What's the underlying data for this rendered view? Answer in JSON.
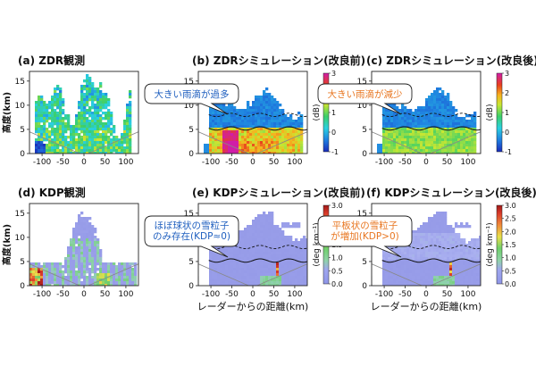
{
  "chart_data": [
    {
      "type": "heatmap",
      "title": "(a) ZDR観測",
      "ylabel": "高度(km)",
      "xlabel": "",
      "xlim": [
        -130,
        130
      ],
      "ylim": [
        0,
        17
      ],
      "xticks": [
        -100,
        -50,
        0,
        50,
        100
      ],
      "yticks": [
        0,
        5,
        10,
        15
      ],
      "colorbar": null,
      "callout": null,
      "field": "zdr_obs"
    },
    {
      "type": "heatmap",
      "title": "(b) ZDRシミュレーション(改良前)",
      "ylabel": "",
      "xlabel": "",
      "xlim": [
        -130,
        130
      ],
      "ylim": [
        0,
        17
      ],
      "xticks": [
        -100,
        -50,
        0,
        50,
        100
      ],
      "yticks": [
        0,
        5,
        10,
        15
      ],
      "colorbar": {
        "label": "(dB)",
        "ticks": [
          "-1",
          "0",
          "1",
          "2",
          "3"
        ],
        "cmap": "jet",
        "min": -1,
        "max": 3
      },
      "callout": {
        "text": "大きい雨滴が過多",
        "color": "#1f5fbf"
      },
      "melting_layer_km": 5.2,
      "field": "zdr_before"
    },
    {
      "type": "heatmap",
      "title": "(c) ZDRシミュレーション(改良後)",
      "ylabel": "",
      "xlabel": "",
      "xlim": [
        -130,
        130
      ],
      "ylim": [
        0,
        17
      ],
      "xticks": [
        -100,
        -50,
        0,
        50,
        100
      ],
      "yticks": [
        0,
        5,
        10,
        15
      ],
      "colorbar": {
        "label": "(dB)",
        "ticks": [
          "-1",
          "0",
          "1",
          "2",
          "3"
        ],
        "cmap": "jet",
        "min": -1,
        "max": 3
      },
      "callout": {
        "text": "大きい雨滴が減少",
        "color": "#e87722"
      },
      "melting_layer_km": 5.2,
      "field": "zdr_after"
    },
    {
      "type": "heatmap",
      "title": "(d) KDP観測",
      "ylabel": "高度(km)",
      "xlabel": "",
      "xlim": [
        -130,
        130
      ],
      "ylim": [
        0,
        17
      ],
      "xticks": [
        -100,
        -50,
        0,
        50,
        100
      ],
      "yticks": [
        0,
        5,
        10,
        15
      ],
      "colorbar": null,
      "callout": null,
      "field": "kdp_obs"
    },
    {
      "type": "heatmap",
      "title": "(e) KDPシミュレーション(改良前)",
      "ylabel": "",
      "xlabel": "レーダーからの距離(km)",
      "xlim": [
        -130,
        130
      ],
      "ylim": [
        0,
        17
      ],
      "xticks": [
        -100,
        -50,
        0,
        50,
        100
      ],
      "yticks": [
        0,
        5,
        10,
        15
      ],
      "colorbar": {
        "label": "(deg km⁻¹)",
        "ticks": [
          "0.0",
          "0.5",
          "1.0",
          "1.5",
          "2.0",
          "2.5",
          "3.0"
        ],
        "cmap": "kdp",
        "min": 0,
        "max": 3
      },
      "callout": {
        "text": "ほぼ球状の雪粒子\nのみ存在(KDP≈0)",
        "color": "#1f5fbf"
      },
      "melting_layer_km": 5.2,
      "field": "kdp_before"
    },
    {
      "type": "heatmap",
      "title": "(f) KDPシミュレーション(改良後)",
      "ylabel": "",
      "xlabel": "レーダーからの距離(km)",
      "xlim": [
        -130,
        130
      ],
      "ylim": [
        0,
        17
      ],
      "xticks": [
        -100,
        -50,
        0,
        50,
        100
      ],
      "yticks": [
        0,
        5,
        10,
        15
      ],
      "colorbar": {
        "label": "(deg km⁻¹)",
        "ticks": [
          "0.0",
          "0.5",
          "1.0",
          "1.5",
          "2.0",
          "2.5",
          "3.0"
        ],
        "cmap": "kdp",
        "min": 0,
        "max": 3
      },
      "callout": {
        "text": "平板状の雪粒子\nが増加(KDP>0)",
        "color": "#e87722"
      },
      "melting_layer_km": 5.2,
      "field": "kdp_after"
    }
  ]
}
